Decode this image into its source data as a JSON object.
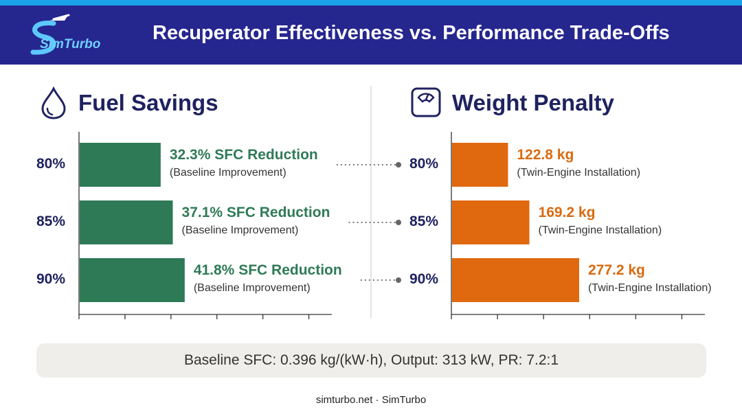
{
  "header": {
    "title": "Recuperator Effectiveness vs. Performance Trade-Offs",
    "logo_text": "SimTurbo"
  },
  "colors": {
    "header_bg": "#26268f",
    "accent_stripe": "#1aa3e8",
    "fuel_bar": "#2e7a56",
    "fuel_text": "#2e7a56",
    "weight_bar": "#e0680f",
    "weight_text": "#d96a10"
  },
  "icons": {
    "fuel": "water-drop-icon",
    "weight": "scale-icon"
  },
  "chart_data": [
    {
      "type": "bar",
      "orientation": "horizontal",
      "title": "Fuel Savings",
      "categories": [
        "80%",
        "85%",
        "90%"
      ],
      "values": [
        32.3,
        37.1,
        41.8
      ],
      "unit": "% SFC Reduction",
      "data_labels": [
        "32.3% SFC Reduction",
        "37.1% SFC Reduction",
        "41.8% SFC Reduction"
      ],
      "data_sublabels": [
        "(Baseline Improvement)",
        "(Baseline Improvement)",
        "(Baseline Improvement)"
      ],
      "xlim": [
        0,
        100
      ],
      "grid": false
    },
    {
      "type": "bar",
      "orientation": "horizontal",
      "title": "Weight Penalty",
      "categories": [
        "80%",
        "85%",
        "90%"
      ],
      "values": [
        122.8,
        169.2,
        277.2
      ],
      "unit": "kg",
      "data_labels": [
        "122.8 kg",
        "169.2 kg",
        "277.2 kg"
      ],
      "data_sublabels": [
        "(Twin-Engine Installation)",
        "(Twin-Engine Installation)",
        "(Twin-Engine Installation)"
      ],
      "xlim": [
        0,
        550
      ],
      "grid": false
    }
  ],
  "info": "Baseline SFC: 0.396 kg/(kW·h), Output: 313 kW, PR: 7.2:1",
  "footer": "simturbo.net · SimTurbo"
}
